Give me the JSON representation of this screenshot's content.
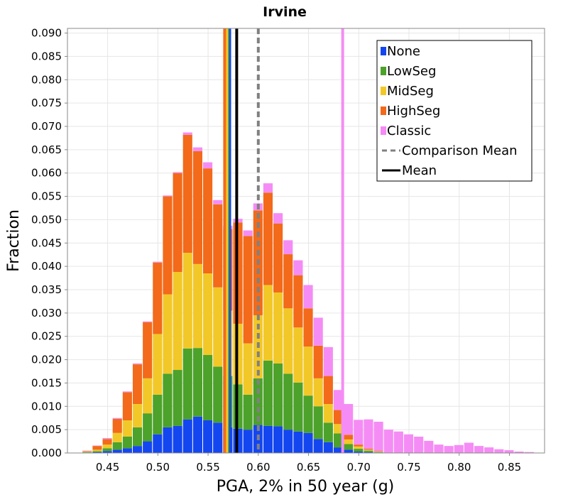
{
  "chart_data": {
    "type": "bar",
    "subtype": "stacked-histogram",
    "title": "Irvine",
    "xlabel": "PGA, 2% in 50 year (g)",
    "ylabel": "Fraction",
    "xlim": [
      0.41,
      0.885
    ],
    "ylim": [
      0,
      0.091
    ],
    "bin_width": 0.01,
    "x_ticks": [
      0.45,
      0.5,
      0.55,
      0.6,
      0.65,
      0.7,
      0.75,
      0.8,
      0.85
    ],
    "x_tick_labels": [
      "0.45",
      "0.50",
      "0.55",
      "0.60",
      "0.65",
      "0.70",
      "0.75",
      "0.80",
      "0.85"
    ],
    "y_ticks": [
      0,
      0.005,
      0.01,
      0.015,
      0.02,
      0.025,
      0.03,
      0.035,
      0.04,
      0.045,
      0.05,
      0.055,
      0.06,
      0.065,
      0.07,
      0.075,
      0.08,
      0.085,
      0.09
    ],
    "y_tick_labels": [
      "0.000",
      "0.005",
      "0.010",
      "0.015",
      "0.020",
      "0.025",
      "0.030",
      "0.035",
      "0.040",
      "0.045",
      "0.050",
      "0.055",
      "0.060",
      "0.065",
      "0.070",
      "0.075",
      "0.080",
      "0.085",
      "0.090"
    ],
    "bin_centers": [
      0.43,
      0.44,
      0.45,
      0.46,
      0.47,
      0.48,
      0.49,
      0.5,
      0.51,
      0.52,
      0.53,
      0.54,
      0.55,
      0.56,
      0.57,
      0.58,
      0.59,
      0.6,
      0.61,
      0.62,
      0.63,
      0.64,
      0.65,
      0.66,
      0.67,
      0.68,
      0.69,
      0.7,
      0.71,
      0.72,
      0.73,
      0.74,
      0.75,
      0.76,
      0.77,
      0.78,
      0.79,
      0.8,
      0.81,
      0.82,
      0.83,
      0.84,
      0.85,
      0.86,
      0.87
    ],
    "series": [
      {
        "name": "None",
        "color": "#1446f0",
        "values": [
          0.0001,
          0.0002,
          0.0004,
          0.0007,
          0.001,
          0.0015,
          0.0025,
          0.004,
          0.0055,
          0.0058,
          0.0072,
          0.0078,
          0.007,
          0.0065,
          0.0055,
          0.0052,
          0.005,
          0.006,
          0.0058,
          0.0057,
          0.005,
          0.0046,
          0.0043,
          0.003,
          0.0023,
          0.0012,
          0.0007,
          0.0003,
          0.0002,
          0.0001,
          0,
          0,
          0,
          0,
          0,
          0,
          0,
          0,
          0,
          0,
          0,
          0,
          0,
          0,
          0
        ]
      },
      {
        "name": "LowSeg",
        "color": "#4ca22a",
        "values": [
          0.0001,
          0.0002,
          0.0006,
          0.0016,
          0.0025,
          0.004,
          0.006,
          0.0085,
          0.0115,
          0.012,
          0.0152,
          0.0147,
          0.014,
          0.012,
          0.011,
          0.0095,
          0.0075,
          0.01,
          0.014,
          0.0135,
          0.012,
          0.0105,
          0.008,
          0.007,
          0.0042,
          0.003,
          0.0012,
          0.0006,
          0.0003,
          0.0001,
          0,
          0,
          0,
          0,
          0,
          0,
          0,
          0,
          0,
          0,
          0,
          0,
          0,
          0,
          0
        ]
      },
      {
        "name": "MidSeg",
        "color": "#f2c828",
        "values": [
          0.0001,
          0.0003,
          0.0008,
          0.002,
          0.0035,
          0.005,
          0.0075,
          0.013,
          0.017,
          0.021,
          0.0205,
          0.018,
          0.0175,
          0.017,
          0.014,
          0.013,
          0.011,
          0.0135,
          0.0162,
          0.0152,
          0.014,
          0.0118,
          0.0105,
          0.006,
          0.004,
          0.002,
          0.001,
          0.0005,
          0.0002,
          0.0001,
          0,
          0,
          0,
          0,
          0,
          0,
          0,
          0,
          0,
          0,
          0,
          0,
          0,
          0,
          0
        ]
      },
      {
        "name": "HighSeg",
        "color": "#f26a1a",
        "values": [
          0.0001,
          0.0008,
          0.0012,
          0.003,
          0.006,
          0.0085,
          0.012,
          0.0153,
          0.021,
          0.0212,
          0.0253,
          0.0242,
          0.0225,
          0.0178,
          0.0175,
          0.0217,
          0.023,
          0.0225,
          0.0198,
          0.0148,
          0.0116,
          0.0112,
          0.0082,
          0.007,
          0.006,
          0.003,
          0.001,
          0.0004,
          0.0002,
          0.0001,
          0,
          0,
          0,
          0,
          0,
          0,
          0,
          0,
          0,
          0,
          0,
          0,
          0,
          0,
          0
        ]
      },
      {
        "name": "Classic",
        "color": "#f58cf5",
        "values": [
          0.0001,
          0.0001,
          0.0002,
          0.0002,
          0.0002,
          0.0002,
          0.0002,
          0.0002,
          0.0002,
          0.0002,
          0.0005,
          0.0008,
          0.0013,
          0.0009,
          0.0007,
          0.0008,
          0.0012,
          0.0015,
          0.002,
          0.0022,
          0.003,
          0.0032,
          0.005,
          0.006,
          0.0062,
          0.0043,
          0.0066,
          0.0053,
          0.0063,
          0.0063,
          0.005,
          0.0046,
          0.004,
          0.0035,
          0.0026,
          0.0018,
          0.0015,
          0.0017,
          0.0022,
          0.0015,
          0.0012,
          0.0008,
          0.0006,
          0.0003,
          0.0002
        ]
      }
    ],
    "vertical_lines": [
      {
        "name": "None mean",
        "x": 0.5715,
        "color": "#1446f0",
        "style": "solid"
      },
      {
        "name": "LowSeg mean",
        "x": 0.5695,
        "color": "#4ca22a",
        "style": "solid"
      },
      {
        "name": "MidSeg mean",
        "x": 0.5685,
        "color": "#f2c828",
        "style": "solid"
      },
      {
        "name": "HighSeg mean",
        "x": 0.5665,
        "color": "#f26a1a",
        "style": "solid"
      },
      {
        "name": "Classic mean",
        "x": 0.684,
        "color": "#f58cf5",
        "style": "solid"
      },
      {
        "name": "Comparison Mean",
        "x": 0.6,
        "color": "#808080",
        "style": "dashed"
      },
      {
        "name": "Mean",
        "x": 0.5785,
        "color": "#000000",
        "style": "solid"
      }
    ],
    "legend": {
      "position": "top-right",
      "entries": [
        {
          "label": "None",
          "color": "#1446f0",
          "style": "box"
        },
        {
          "label": "LowSeg",
          "color": "#4ca22a",
          "style": "box"
        },
        {
          "label": "MidSeg",
          "color": "#f2c828",
          "style": "box"
        },
        {
          "label": "HighSeg",
          "color": "#f26a1a",
          "style": "box"
        },
        {
          "label": "Classic",
          "color": "#f58cf5",
          "style": "box"
        },
        {
          "label": "Comparison Mean",
          "color": "#808080",
          "style": "dashed"
        },
        {
          "label": "Mean",
          "color": "#000000",
          "style": "solid"
        }
      ]
    },
    "grid": true
  }
}
